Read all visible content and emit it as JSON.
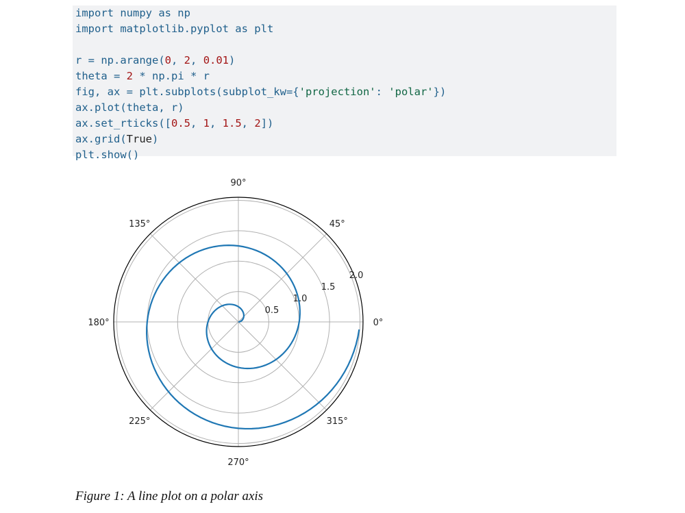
{
  "code": {
    "lines": [
      [
        [
          "import numpy as np",
          "n"
        ]
      ],
      [
        [
          "import matplotlib.pyplot as plt",
          "n"
        ]
      ],
      [],
      [
        [
          "r = np.arange(",
          "n"
        ],
        [
          "0",
          "k"
        ],
        [
          ", ",
          "n"
        ],
        [
          "2",
          "k"
        ],
        [
          ", ",
          "n"
        ],
        [
          "0.01",
          "k"
        ],
        [
          ")",
          "n"
        ]
      ],
      [
        [
          "theta = ",
          "n"
        ],
        [
          "2",
          "k"
        ],
        [
          " * np.pi * r",
          "n"
        ]
      ],
      [
        [
          "fig, ax = plt.subplots(subplot_kw={",
          "n"
        ],
        [
          "'projection'",
          "s"
        ],
        [
          ": ",
          "n"
        ],
        [
          "'polar'",
          "s"
        ],
        [
          "})",
          "n"
        ]
      ],
      [
        [
          "ax.plot(theta, r)",
          "n"
        ]
      ],
      [
        [
          "ax.set_rticks([",
          "n"
        ],
        [
          "0.5",
          "k"
        ],
        [
          ", ",
          "n"
        ],
        [
          "1",
          "k"
        ],
        [
          ", ",
          "n"
        ],
        [
          "1.5",
          "k"
        ],
        [
          ", ",
          "n"
        ],
        [
          "2",
          "k"
        ],
        [
          "])",
          "n"
        ]
      ],
      [
        [
          "ax.grid(",
          "n"
        ],
        [
          "True",
          "d"
        ],
        [
          ")",
          "n"
        ]
      ],
      [
        [
          "plt.show()",
          "n"
        ]
      ]
    ],
    "colors": {
      "name": "#1f5f8b",
      "number": "#a31515",
      "string": "#116644",
      "background": "#f1f2f4"
    }
  },
  "chart_data": {
    "type": "line",
    "projection": "polar",
    "series": [
      {
        "r_start": 0,
        "r_stop": 2,
        "r_step": 0.01,
        "theta": "2*pi*r",
        "color": "#1f77b4"
      }
    ],
    "rticks": [
      0.5,
      1.0,
      1.5,
      2.0
    ],
    "rtick_labels": [
      "0.5",
      "1.0",
      "1.5",
      "2.0"
    ],
    "rlim": [
      0,
      2.05
    ],
    "theta_ticks": [
      0,
      45,
      90,
      135,
      180,
      225,
      270,
      315
    ],
    "theta_tick_labels": [
      "0°",
      "45°",
      "90°",
      "135°",
      "180°",
      "225°",
      "270°",
      "315°"
    ],
    "grid": true
  },
  "caption": "Figure 1: A line plot on a polar axis"
}
